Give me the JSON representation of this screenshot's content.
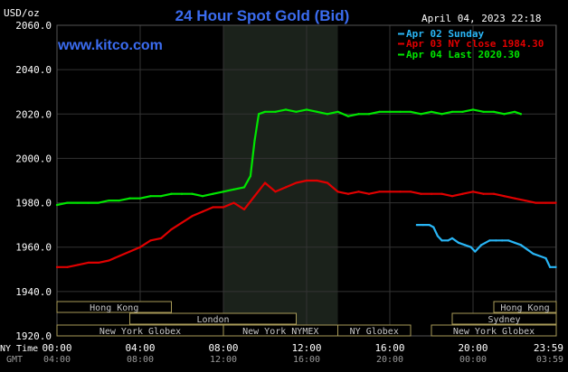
{
  "header": {
    "title": "24 Hour Spot Gold (Bid)",
    "unit": "USD/oz",
    "date": "April 04, 2023 22:18",
    "watermark": "www.kitco.com"
  },
  "footer": {
    "row1_label": "NY Time",
    "row2_label": "GMT"
  },
  "sessions": [
    {
      "label": "Hong Kong",
      "start": 0.0,
      "end": 5.5,
      "row": 0
    },
    {
      "label": "London",
      "start": 3.5,
      "end": 11.5,
      "row": 1
    },
    {
      "label": "New York Globex",
      "start": 0.0,
      "end": 8.0,
      "row": 2
    },
    {
      "label": "New York NYMEX",
      "start": 8.0,
      "end": 13.5,
      "row": 2
    },
    {
      "label": "NY Globex",
      "start": 13.5,
      "end": 17.0,
      "row": 2
    },
    {
      "label": "Hong Kong",
      "start": 21.0,
      "end": 24.0,
      "row": 0
    },
    {
      "label": "Sydney",
      "start": 19.0,
      "end": 24.0,
      "row": 1
    },
    {
      "label": "New York Globex",
      "start": 18.0,
      "end": 24.0,
      "row": 2
    }
  ],
  "colors": {
    "background": "#000000",
    "title": "#3b6cf0",
    "watermark": "#3b6cf0",
    "grid": "#333333",
    "nymex_shade": "#1b221b",
    "session_border": "#a89a58",
    "session_text": "#c8c8c8",
    "axis_text": "#ffffff",
    "gmt_text": "#9a9a9a"
  },
  "chart_data": {
    "type": "line",
    "title": "24 Hour Spot Gold (Bid)",
    "ylabel": "USD/oz",
    "ylim": [
      1920,
      2060
    ],
    "yticks": [
      "1920.0",
      "1940.0",
      "1960.0",
      "1980.0",
      "2000.0",
      "2020.0",
      "2040.0",
      "2060.0"
    ],
    "ytick_values": [
      1920,
      1940,
      1960,
      1980,
      2000,
      2020,
      2040,
      2060
    ],
    "xlim": [
      0,
      24
    ],
    "xticks_ny": [
      "00:00",
      "04:00",
      "08:00",
      "12:00",
      "16:00",
      "20:00",
      "23:59"
    ],
    "xticks_gmt": [
      "04:00",
      "08:00",
      "12:00",
      "16:00",
      "20:00",
      "00:00",
      "03:59"
    ],
    "xtick_hours": [
      0,
      4,
      8,
      12,
      16,
      20,
      23.98
    ],
    "nymex_span": [
      8.0,
      13.5
    ],
    "grid": true,
    "legend_position": "top-right",
    "series": [
      {
        "name": "Apr 02 Sunday",
        "label": "Apr 02 Sunday",
        "color": "#29b6f6",
        "x": [
          17.3,
          17.6,
          17.9,
          18.1,
          18.3,
          18.5,
          18.8,
          19.0,
          19.3,
          19.6,
          19.9,
          20.1,
          20.4,
          20.8,
          21.1,
          21.4,
          21.7,
          22.0,
          22.3,
          22.6,
          22.9,
          23.2,
          23.5,
          23.7,
          23.98
        ],
        "y": [
          1970,
          1970,
          1970,
          1969,
          1965,
          1963,
          1963,
          1964,
          1962,
          1961,
          1960,
          1958,
          1961,
          1963,
          1963,
          1963,
          1963,
          1962,
          1961,
          1959,
          1957,
          1956,
          1955,
          1951,
          1951
        ]
      },
      {
        "name": "Apr 03 NY close 1984.30",
        "label": "Apr 03 NY close 1984.30",
        "color": "#e00000",
        "x": [
          0,
          0.5,
          1.0,
          1.5,
          2.0,
          2.5,
          3.0,
          3.5,
          4.0,
          4.5,
          5.0,
          5.5,
          6.0,
          6.5,
          7.0,
          7.5,
          8.0,
          8.5,
          9.0,
          9.5,
          10.0,
          10.5,
          11.0,
          11.5,
          12.0,
          12.5,
          13.0,
          13.5,
          14.0,
          14.5,
          15.0,
          15.5,
          16.0,
          16.5,
          17.0,
          17.5,
          18.0,
          18.5,
          19.0,
          19.5,
          20.0,
          20.5,
          21.0,
          21.5,
          22.0,
          22.5,
          23.0,
          23.5,
          23.98
        ],
        "y": [
          1951,
          1951,
          1952,
          1953,
          1953,
          1954,
          1956,
          1958,
          1960,
          1963,
          1964,
          1968,
          1971,
          1974,
          1976,
          1978,
          1978,
          1980,
          1977,
          1983,
          1989,
          1985,
          1987,
          1989,
          1990,
          1990,
          1989,
          1985,
          1984,
          1985,
          1984,
          1985,
          1985,
          1985,
          1985,
          1984,
          1984,
          1984,
          1983,
          1984,
          1985,
          1984,
          1984,
          1983,
          1982,
          1981,
          1980,
          1980,
          1980
        ]
      },
      {
        "name": "Apr 04 Last 2020.30",
        "label": "Apr 04 Last 2020.30",
        "color": "#00e600",
        "x": [
          0,
          0.5,
          1.0,
          1.5,
          2.0,
          2.5,
          3.0,
          3.5,
          4.0,
          4.5,
          5.0,
          5.5,
          6.0,
          6.5,
          7.0,
          7.5,
          8.0,
          8.5,
          9.0,
          9.3,
          9.5,
          9.7,
          10.0,
          10.5,
          11.0,
          11.5,
          12.0,
          12.5,
          13.0,
          13.5,
          14.0,
          14.5,
          15.0,
          15.5,
          16.0,
          16.5,
          17.0,
          17.5,
          18.0,
          18.5,
          19.0,
          19.5,
          20.0,
          20.5,
          21.0,
          21.5,
          22.0,
          22.3
        ],
        "y": [
          1979,
          1980,
          1980,
          1980,
          1980,
          1981,
          1981,
          1982,
          1982,
          1983,
          1983,
          1984,
          1984,
          1984,
          1983,
          1984,
          1985,
          1986,
          1987,
          1992,
          2008,
          2020,
          2021,
          2021,
          2022,
          2021,
          2022,
          2021,
          2020,
          2021,
          2019,
          2020,
          2020,
          2021,
          2021,
          2021,
          2021,
          2020,
          2021,
          2020,
          2021,
          2021,
          2022,
          2021,
          2021,
          2020,
          2021,
          2020
        ]
      }
    ]
  }
}
